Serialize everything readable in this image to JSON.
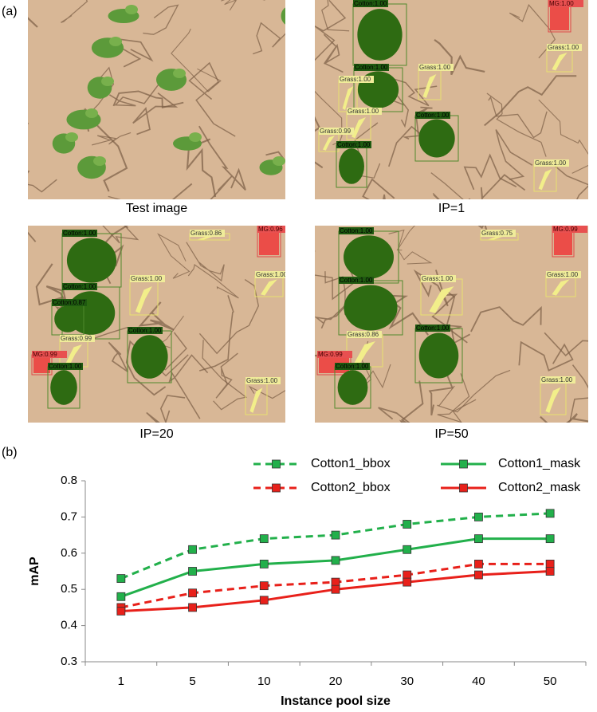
{
  "figure_labels": [
    "(a)",
    "(b)"
  ],
  "panels": [
    {
      "caption": "Test image",
      "detections": []
    },
    {
      "caption": "IP=1",
      "detections": [
        "Cotton:1.00",
        "MG:1.00",
        "Grass:1.00",
        "Cotton:1.00",
        "Grass:1.00",
        "Grass:1.00",
        "Cotton:1.00",
        "Grass:1.00",
        "Grass:0.99",
        "Cotton:1.00",
        "Grass:1.00"
      ]
    },
    {
      "caption": "IP=20",
      "detections": [
        "Cotton:1.00",
        "Grass:0.86",
        "MG:0.96",
        "Grass:1.00",
        "Cotton:1.00",
        "Grass:1.00",
        "Cotton:0.87",
        "Cotton:1.00",
        "Grass:0.99",
        "MG:0.99",
        "Cotton:1.00",
        "Grass:1.00"
      ]
    },
    {
      "caption": "IP=50",
      "detections": [
        "Cotton:1.00",
        "Grass:0.75",
        "MG:0.99",
        "Grass:1.00",
        "Cotton:1.00",
        "Grass:1.00",
        "Cotton:1.00",
        "Grass:0.86",
        "MG:0.99",
        "Cotton:1.00",
        "Grass:1.00"
      ]
    }
  ],
  "chart_data": {
    "type": "line",
    "xlabel": "Instance pool size",
    "ylabel": "mAP",
    "categories": [
      "1",
      "5",
      "10",
      "20",
      "30",
      "40",
      "50"
    ],
    "series": [
      {
        "name": "Cotton1_bbox",
        "color": "#22b04b",
        "dashed": true,
        "values": [
          0.53,
          0.61,
          0.64,
          0.65,
          0.68,
          0.7,
          0.71
        ]
      },
      {
        "name": "Cotton1_mask",
        "color": "#22b04b",
        "dashed": false,
        "values": [
          0.48,
          0.55,
          0.57,
          0.58,
          0.61,
          0.64,
          0.64
        ]
      },
      {
        "name": "Cotton2_bbox",
        "color": "#e8201a",
        "dashed": true,
        "values": [
          0.45,
          0.49,
          0.51,
          0.52,
          0.54,
          0.57,
          0.57
        ]
      },
      {
        "name": "Cotton2_mask",
        "color": "#e8201a",
        "dashed": false,
        "values": [
          0.44,
          0.45,
          0.47,
          0.5,
          0.52,
          0.54,
          0.55
        ]
      }
    ],
    "ylim": [
      0.3,
      0.8
    ],
    "yticks": [
      0.3,
      0.4,
      0.5,
      0.6,
      0.7,
      0.8
    ],
    "legend": "top"
  }
}
